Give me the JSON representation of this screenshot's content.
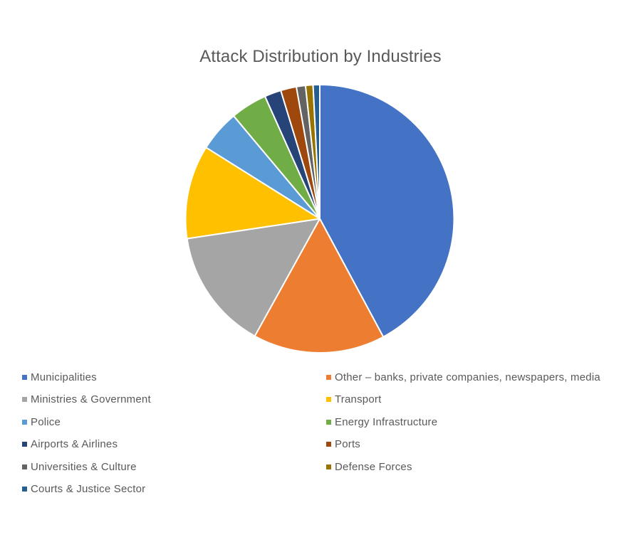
{
  "chart_data": {
    "type": "pie",
    "title": "Attack Distribution by Industries",
    "legend_position": "bottom",
    "start_angle_deg": 0,
    "direction": "clockwise",
    "units": "percent (estimated from slice angles)",
    "categories": [
      "Municipalities",
      "Other – banks, private companies, newspapers, media",
      "Ministries & Government",
      "Transport",
      "Police",
      "Energy Infrastructure",
      "Airports & Airlines",
      "Ports",
      "Universities & Culture",
      "Defense Forces",
      "Courts & Justice Sector"
    ],
    "values": [
      42.2,
      15.9,
      14.6,
      11.3,
      5.0,
      4.4,
      2.0,
      1.9,
      1.1,
      0.9,
      0.8
    ],
    "colors": [
      "#4472C4",
      "#ED7D31",
      "#A5A5A5",
      "#FFC000",
      "#5B9BD5",
      "#70AD47",
      "#264478",
      "#9E480E",
      "#636363",
      "#997300",
      "#255E91"
    ]
  },
  "legend": {
    "items": [
      {
        "label": "Municipalities",
        "color": "#4472C4"
      },
      {
        "label": "Other – banks, private companies, newspapers, media",
        "color": "#ED7D31"
      },
      {
        "label": "Ministries & Government",
        "color": "#A5A5A5"
      },
      {
        "label": "Transport",
        "color": "#FFC000"
      },
      {
        "label": "Police",
        "color": "#5B9BD5"
      },
      {
        "label": "Energy Infrastructure",
        "color": "#70AD47"
      },
      {
        "label": "Airports & Airlines",
        "color": "#264478"
      },
      {
        "label": "Ports",
        "color": "#9E480E"
      },
      {
        "label": "Universities & Culture",
        "color": "#636363"
      },
      {
        "label": "Defense Forces",
        "color": "#997300"
      },
      {
        "label": "Courts & Justice Sector",
        "color": "#255E91"
      }
    ]
  }
}
